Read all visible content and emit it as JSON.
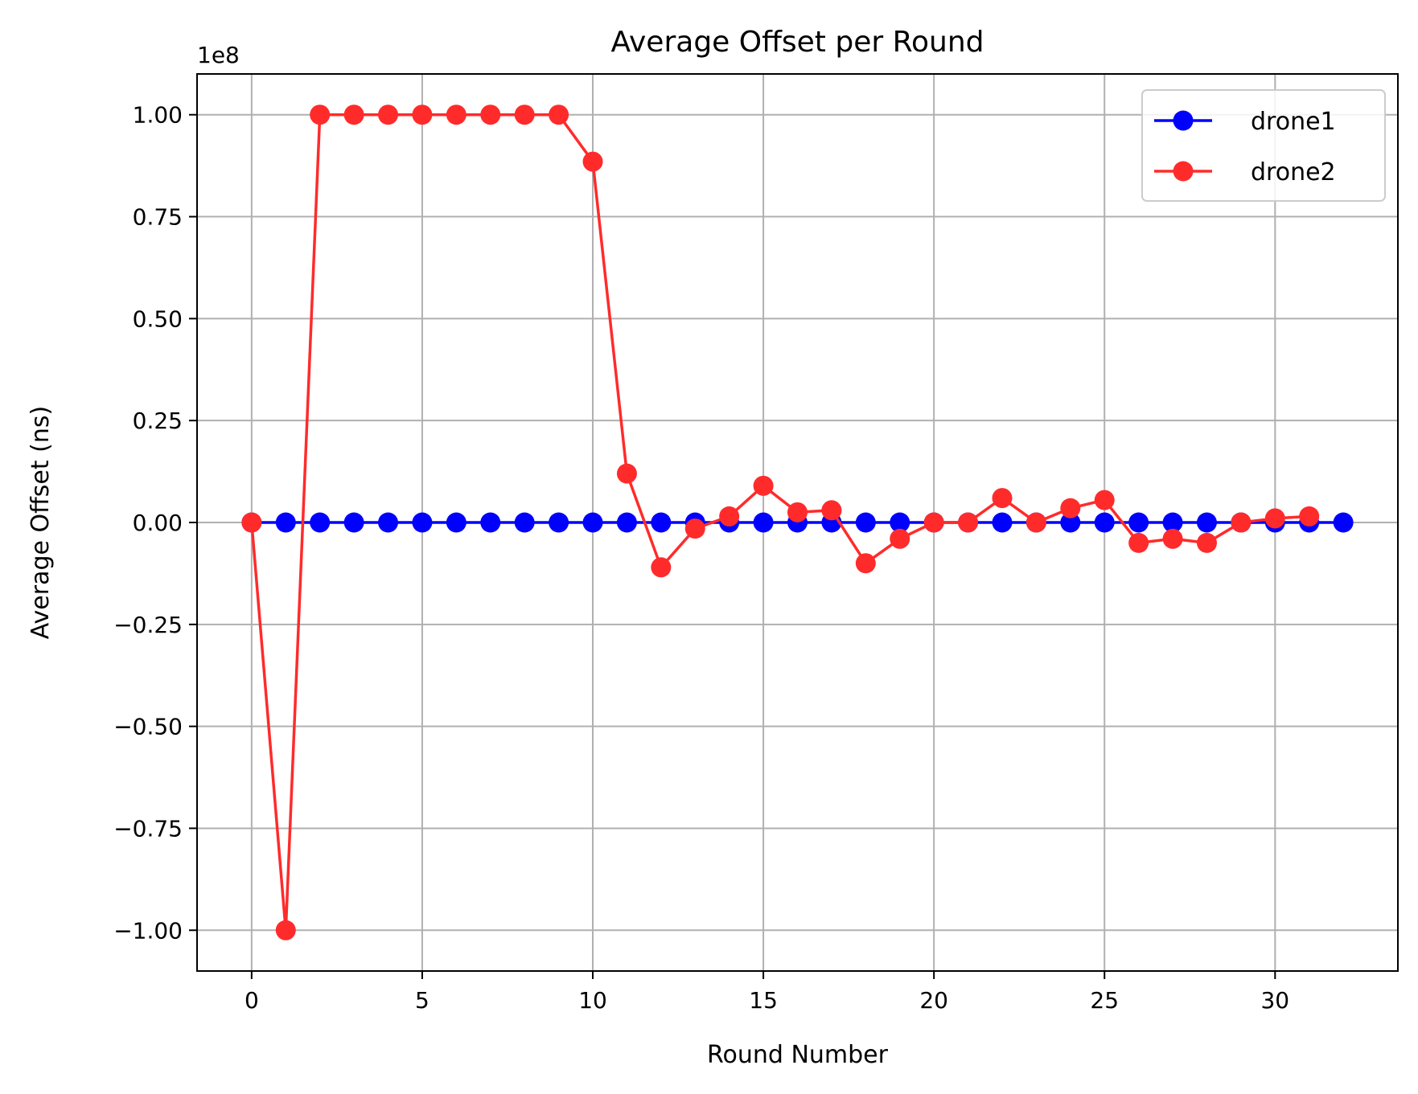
{
  "chart_data": {
    "type": "line",
    "title": "Average Offset per Round",
    "xlabel": "Round Number",
    "ylabel": "Average Offset (ns)",
    "y_scale_label": "1e8",
    "y_multiplier": 100000000,
    "xlim": [
      -1.6,
      33.6
    ],
    "ylim": [
      -1.1,
      1.1
    ],
    "xticks": [
      0,
      5,
      10,
      15,
      20,
      25,
      30
    ],
    "yticks": [
      1.0,
      0.75,
      0.5,
      0.25,
      0.0,
      -0.25,
      -0.5,
      -0.75,
      -1.0
    ],
    "xtick_labels": [
      "0",
      "5",
      "10",
      "15",
      "20",
      "25",
      "30"
    ],
    "ytick_labels": [
      "1.00",
      "0.75",
      "0.50",
      "0.25",
      "0.00",
      "−0.25",
      "−0.50",
      "−0.75",
      "−1.00"
    ],
    "grid": true,
    "legend_position": "top-right",
    "series": [
      {
        "name": "drone1",
        "color": "#0000ff",
        "marker": "circle",
        "x": [
          0,
          1,
          2,
          3,
          4,
          5,
          6,
          7,
          8,
          9,
          10,
          11,
          12,
          13,
          14,
          15,
          16,
          17,
          18,
          19,
          20,
          21,
          22,
          23,
          24,
          25,
          26,
          27,
          28,
          29,
          30,
          31,
          32
        ],
        "y": [
          0,
          0,
          0,
          0,
          0,
          0,
          0,
          0,
          0,
          0,
          0,
          0,
          0,
          0,
          0,
          0,
          0,
          0,
          0,
          0,
          0,
          0,
          0,
          0,
          0,
          0,
          0,
          0,
          0,
          0,
          0,
          0,
          0
        ]
      },
      {
        "name": "drone2",
        "color": "#ff2b2b",
        "marker": "circle",
        "x": [
          0,
          1,
          2,
          3,
          4,
          5,
          6,
          7,
          8,
          9,
          10,
          11,
          12,
          13,
          14,
          15,
          16,
          17,
          18,
          19,
          20,
          21,
          22,
          23,
          24,
          25,
          26,
          27,
          28,
          29,
          30,
          31
        ],
        "y": [
          0,
          -1.0,
          1.0,
          1.0,
          1.0,
          1.0,
          1.0,
          1.0,
          1.0,
          1.0,
          0.885,
          0.12,
          -0.11,
          -0.015,
          0.015,
          0.09,
          0.025,
          0.03,
          -0.1,
          -0.04,
          0,
          0,
          0.06,
          0,
          0.035,
          0.055,
          -0.05,
          -0.04,
          -0.05,
          0,
          0.01,
          0.015
        ]
      }
    ]
  }
}
